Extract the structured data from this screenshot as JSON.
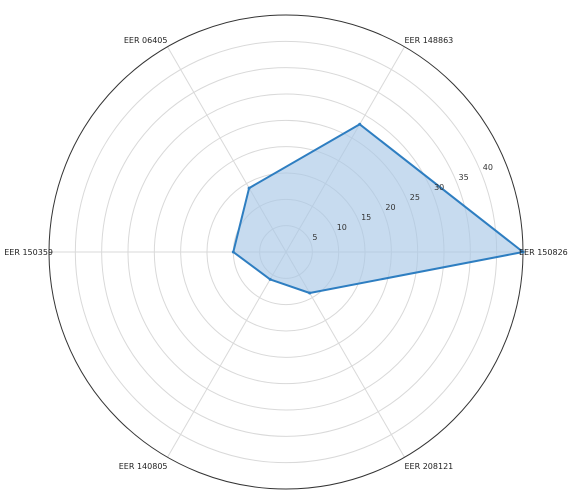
{
  "chart_data": {
    "type": "radar",
    "categories": [
      "EER 150826",
      "EER 148863",
      "EER 06405",
      "EER 150359",
      "EER 140805",
      "EER 208121"
    ],
    "values": [
      45,
      28,
      14,
      10,
      6,
      9
    ],
    "rlim": [
      0,
      45
    ],
    "r_ticks": [
      5,
      10,
      15,
      20,
      25,
      30,
      35,
      40
    ],
    "grid": true,
    "fill_color": "#a9c8e6",
    "line_color": "#2e7ec1",
    "fill_opacity": 0.65
  }
}
